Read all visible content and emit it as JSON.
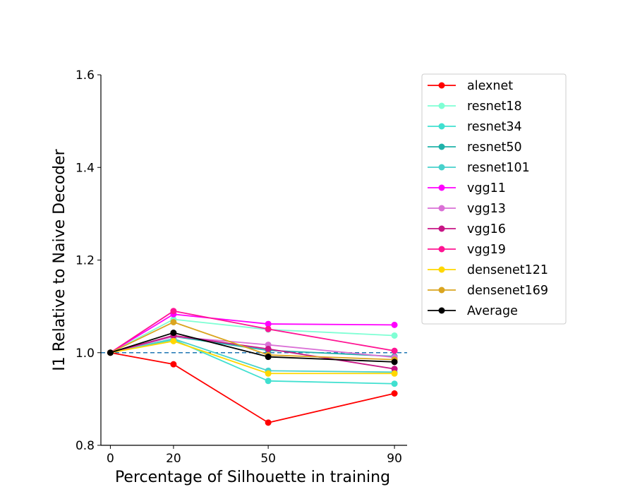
{
  "chart_data": {
    "type": "line",
    "xlabel": "Percentage of Silhouette in training",
    "ylabel": "I1 Relative to Naive Decoder",
    "x": [
      0,
      20,
      50,
      90
    ],
    "x_tick_labels": [
      "0",
      "20",
      "50",
      "90"
    ],
    "xlim": [
      -3,
      94
    ],
    "ylim": [
      0.8,
      1.6
    ],
    "y_tick_labels": [
      "0.8",
      "1.0",
      "1.2",
      "1.4",
      "1.6"
    ],
    "y_ticks": [
      0.8,
      1.0,
      1.2,
      1.4,
      1.6
    ],
    "reference_line": {
      "y": 1.0,
      "style": "dashed",
      "color": "#1f77b4"
    },
    "legend_position": "outside-right-top",
    "grid": false,
    "series": [
      {
        "name": "alexnet",
        "color": "#ff0000",
        "values": [
          1.0,
          0.975,
          0.849,
          0.912
        ]
      },
      {
        "name": "resnet18",
        "color": "#7fffd4",
        "values": [
          1.0,
          1.072,
          1.05,
          1.037
        ]
      },
      {
        "name": "resnet34",
        "color": "#40e0d0",
        "values": [
          1.0,
          1.028,
          0.939,
          0.933
        ]
      },
      {
        "name": "resnet50",
        "color": "#20b2aa",
        "values": [
          1.0,
          1.035,
          1.005,
          0.992
        ]
      },
      {
        "name": "resnet101",
        "color": "#48d1cc",
        "values": [
          1.0,
          1.03,
          0.961,
          0.958
        ]
      },
      {
        "name": "vgg11",
        "color": "#ff00ff",
        "values": [
          1.0,
          1.083,
          1.062,
          1.06
        ]
      },
      {
        "name": "vgg13",
        "color": "#da70d6",
        "values": [
          1.0,
          1.035,
          1.017,
          0.99
        ]
      },
      {
        "name": "vgg16",
        "color": "#c71585",
        "values": [
          1.0,
          1.037,
          1.008,
          0.965
        ]
      },
      {
        "name": "vgg19",
        "color": "#ff1493",
        "values": [
          1.0,
          1.09,
          1.051,
          1.004
        ]
      },
      {
        "name": "densenet121",
        "color": "#ffd700",
        "values": [
          1.0,
          1.025,
          0.955,
          0.955
        ]
      },
      {
        "name": "densenet169",
        "color": "#daa520",
        "values": [
          1.0,
          1.066,
          0.995,
          0.985
        ]
      },
      {
        "name": "Average",
        "color": "#000000",
        "values": [
          1.0,
          1.043,
          0.991,
          0.98
        ]
      }
    ]
  }
}
